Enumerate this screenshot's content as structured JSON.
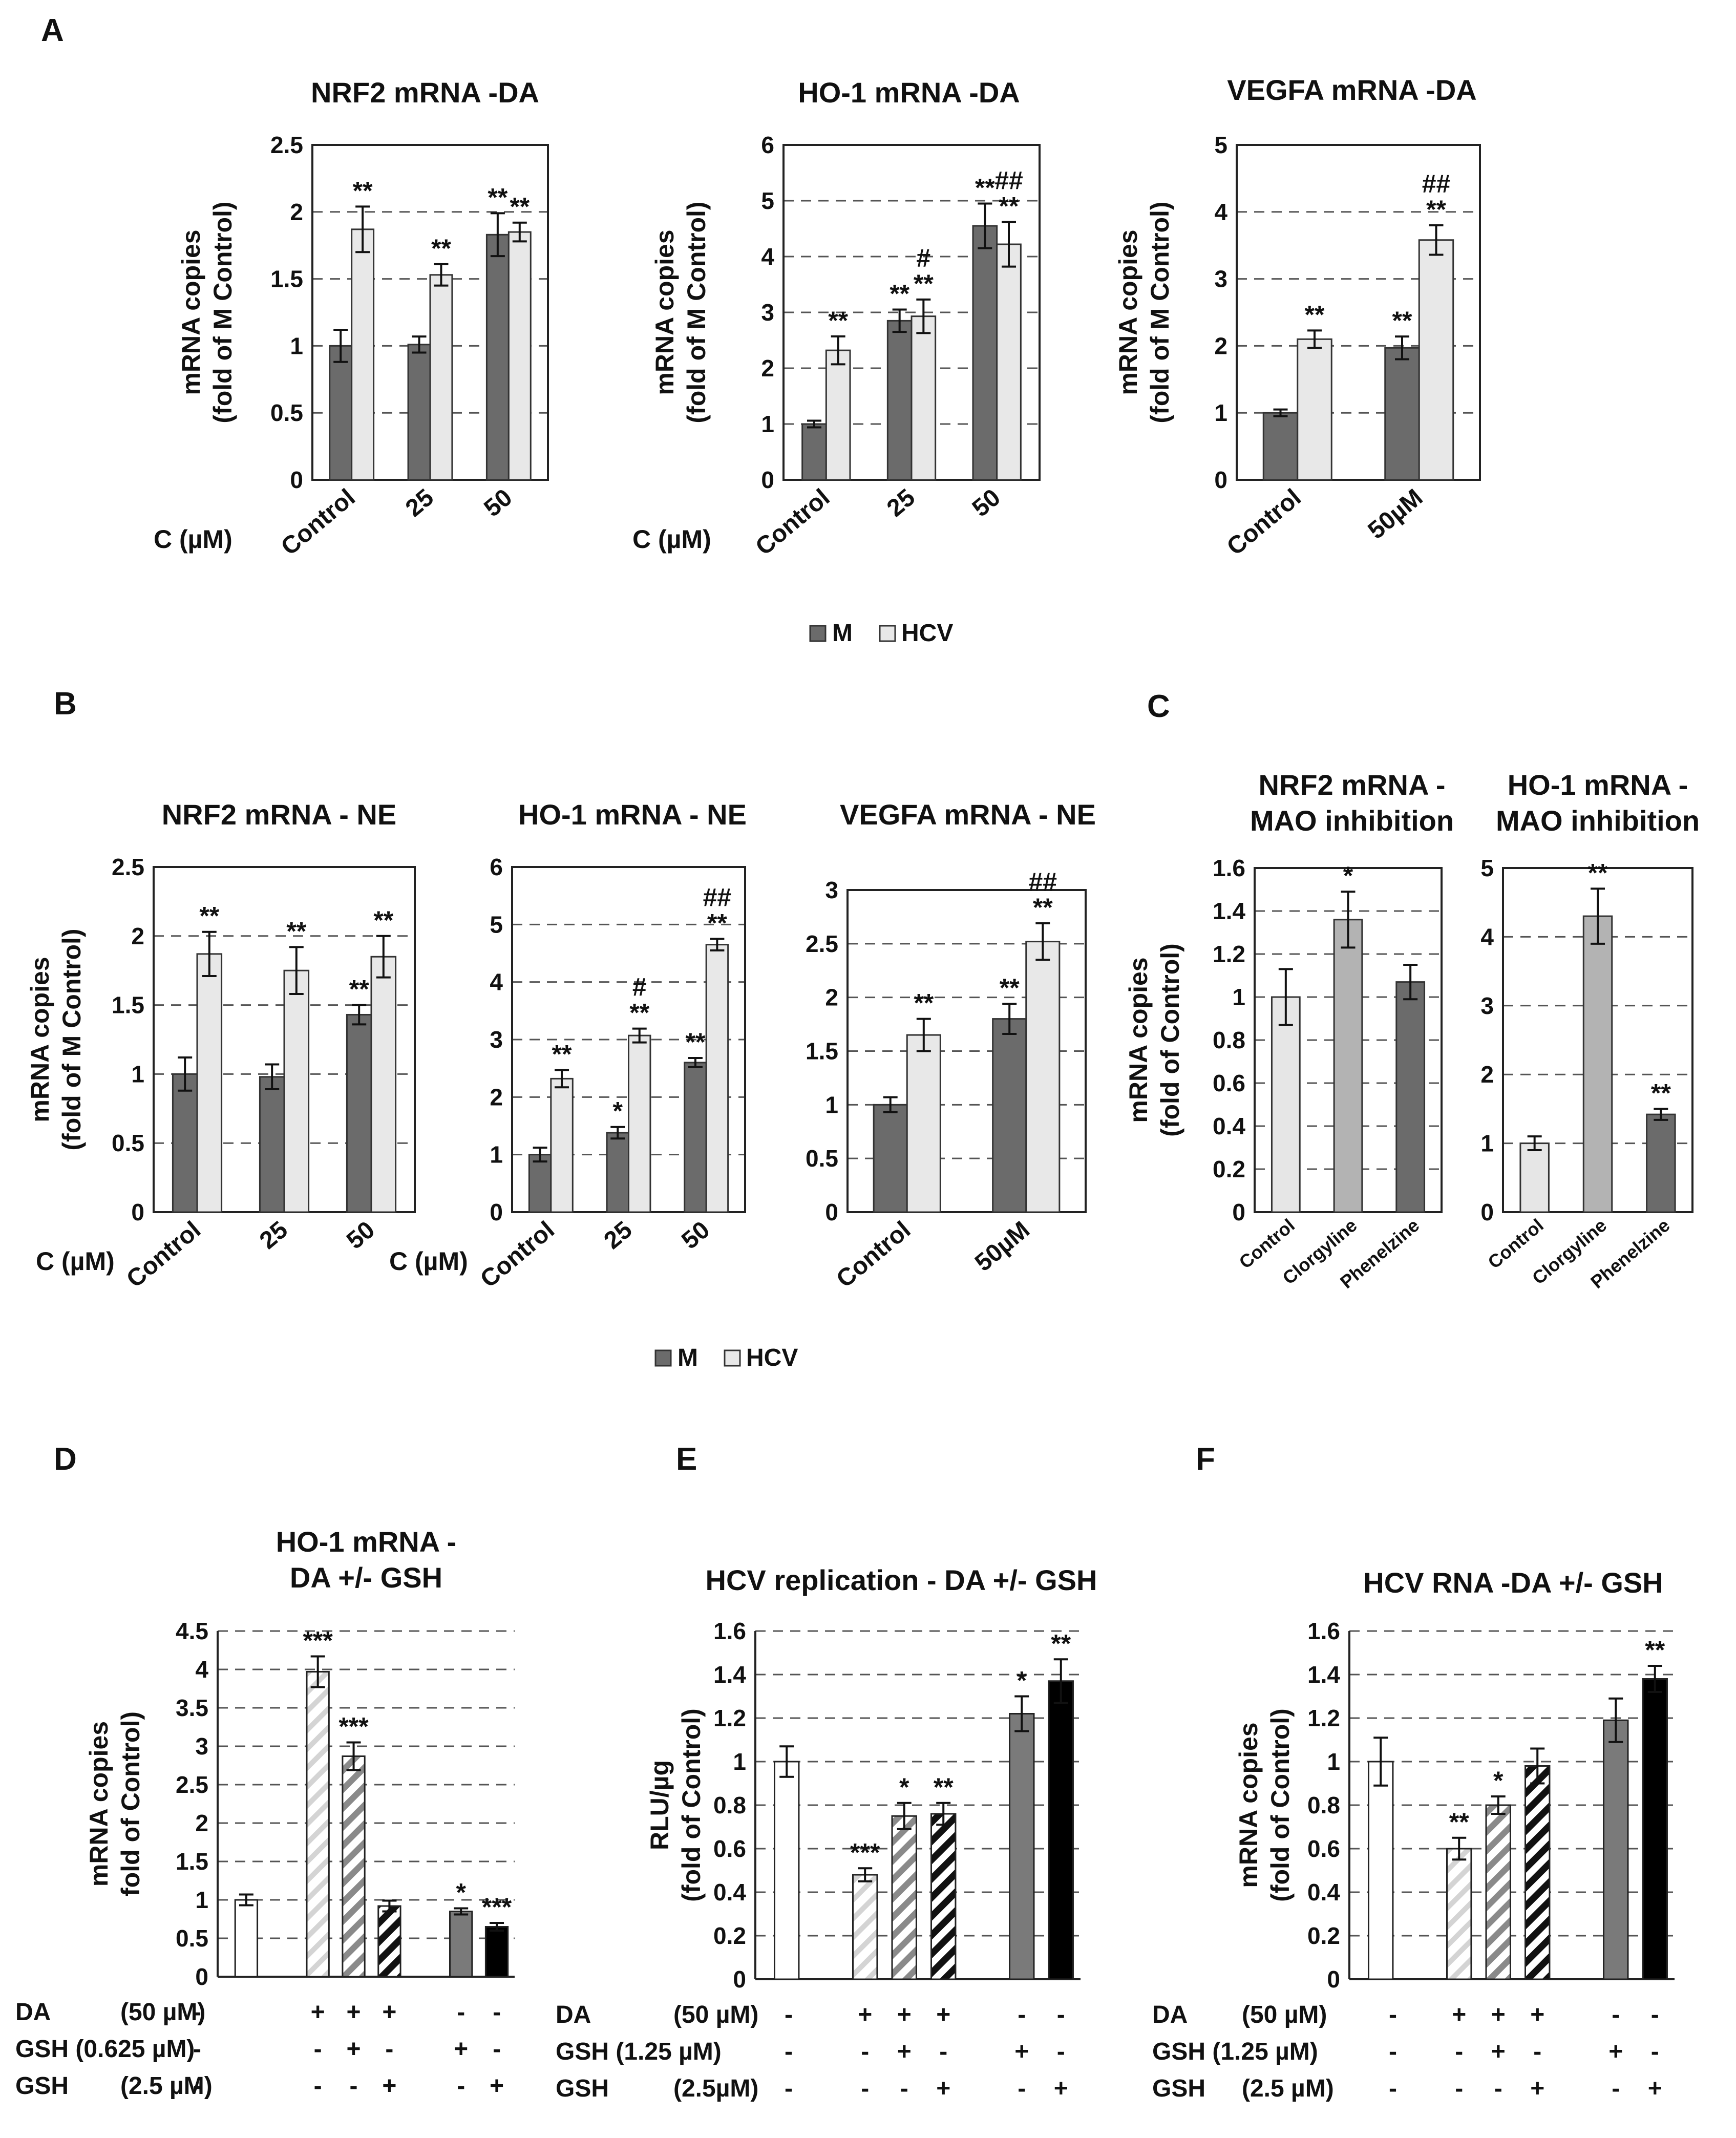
{
  "panel_labels": {
    "A": "A",
    "B": "B",
    "C": "C",
    "D": "D",
    "E": "E",
    "F": "F"
  },
  "legend_AB": {
    "m": "M",
    "hcv": "HCV"
  },
  "colors": {
    "m": "#6b6b6b",
    "hcv": "#e8e8e8",
    "c_light": "#e6e6e6",
    "c_mid": "#b3b3b3",
    "c_dark": "#6b6b6b",
    "dark_gray": "#7a7a7a",
    "black": "#000000"
  },
  "chart_data": [
    {
      "id": "A1",
      "type": "bar",
      "title": "NRF2 mRNA -DA",
      "ylabel": [
        "mRNA copies",
        "(fold of M Control)"
      ],
      "xlabel": "C (µM)",
      "categories": [
        "Control",
        "25",
        "50"
      ],
      "ylim": [
        0,
        2.5
      ],
      "yticks": [
        "0",
        "0.5",
        "1",
        "1.5",
        "2",
        "2.5"
      ],
      "series": [
        {
          "name": "M",
          "values": [
            1.0,
            1.01,
            1.83
          ],
          "errors": [
            0.12,
            0.06,
            0.16
          ],
          "marks": [
            "",
            "",
            "**"
          ]
        },
        {
          "name": "HCV",
          "values": [
            1.87,
            1.53,
            1.85
          ],
          "errors": [
            0.17,
            0.08,
            0.07
          ],
          "marks": [
            "**",
            "**",
            "**"
          ]
        }
      ]
    },
    {
      "id": "A2",
      "type": "bar",
      "title": "HO-1 mRNA -DA",
      "ylabel": [
        "mRNA copies",
        "(fold of M Control)"
      ],
      "xlabel": "C (µM)",
      "categories": [
        "Control",
        "25",
        "50"
      ],
      "ylim": [
        0,
        6
      ],
      "yticks": [
        "0",
        "1",
        "2",
        "3",
        "4",
        "5",
        "6"
      ],
      "series": [
        {
          "name": "M",
          "values": [
            1.0,
            2.85,
            4.55
          ],
          "errors": [
            0.06,
            0.2,
            0.4
          ],
          "marks": [
            "",
            "**",
            "**"
          ]
        },
        {
          "name": "HCV",
          "values": [
            2.32,
            2.93,
            4.22
          ],
          "errors": [
            0.25,
            0.3,
            0.4
          ],
          "marks": [
            "**",
            "#\n**",
            "##\n**"
          ]
        }
      ]
    },
    {
      "id": "A3",
      "type": "bar",
      "title": "VEGFA mRNA -DA",
      "ylabel": [
        "mRNA copies",
        "(fold of M Control)"
      ],
      "xlabel": "",
      "categories": [
        "Control",
        "50µM"
      ],
      "ylim": [
        0,
        5
      ],
      "yticks": [
        "0",
        "1",
        "2",
        "3",
        "4",
        "5"
      ],
      "series": [
        {
          "name": "M",
          "values": [
            1.0,
            1.97
          ],
          "errors": [
            0.05,
            0.17
          ],
          "marks": [
            "",
            "**"
          ]
        },
        {
          "name": "HCV",
          "values": [
            2.1,
            3.58
          ],
          "errors": [
            0.13,
            0.22
          ],
          "marks": [
            "**",
            "##\n**"
          ]
        }
      ]
    },
    {
      "id": "B1",
      "type": "bar",
      "title": "NRF2 mRNA - NE",
      "ylabel": [
        "mRNA copies",
        "(fold of M Control)"
      ],
      "xlabel": "C (µM)",
      "categories": [
        "Control",
        "25",
        "50"
      ],
      "ylim": [
        0,
        2.5
      ],
      "yticks": [
        "0",
        "0.5",
        "1",
        "1.5",
        "2",
        "2.5"
      ],
      "series": [
        {
          "name": "M",
          "values": [
            1.0,
            0.98,
            1.43
          ],
          "errors": [
            0.12,
            0.09,
            0.07
          ],
          "marks": [
            "",
            "",
            "**"
          ]
        },
        {
          "name": "HCV",
          "values": [
            1.87,
            1.75,
            1.85
          ],
          "errors": [
            0.16,
            0.17,
            0.15
          ],
          "marks": [
            "**",
            "**",
            "**"
          ]
        }
      ]
    },
    {
      "id": "B2",
      "type": "bar",
      "title": "HO-1 mRNA - NE",
      "ylabel": [],
      "xlabel": "C (µM)",
      "categories": [
        "Control",
        "25",
        "50"
      ],
      "ylim": [
        0,
        6
      ],
      "yticks": [
        "0",
        "1",
        "2",
        "3",
        "4",
        "5",
        "6"
      ],
      "series": [
        {
          "name": "M",
          "values": [
            1.0,
            1.38,
            2.6
          ],
          "errors": [
            0.12,
            0.1,
            0.08
          ],
          "marks": [
            "",
            "*",
            "**"
          ]
        },
        {
          "name": "HCV",
          "values": [
            2.32,
            3.07,
            4.65
          ],
          "errors": [
            0.15,
            0.12,
            0.1
          ],
          "marks": [
            "**",
            "#\n**",
            "##\n**"
          ]
        }
      ]
    },
    {
      "id": "B3",
      "type": "bar",
      "title": "VEGFA mRNA - NE",
      "ylabel": [],
      "xlabel": "",
      "categories": [
        "Control",
        "50µM"
      ],
      "ylim": [
        0,
        3
      ],
      "yticks": [
        "0",
        "0.5",
        "1",
        "1.5",
        "2",
        "2.5",
        "3"
      ],
      "series": [
        {
          "name": "M",
          "values": [
            1.0,
            1.8
          ],
          "errors": [
            0.07,
            0.14
          ],
          "marks": [
            "",
            "**"
          ]
        },
        {
          "name": "HCV",
          "values": [
            1.65,
            2.52
          ],
          "errors": [
            0.15,
            0.17
          ],
          "marks": [
            "**",
            "##\n**"
          ]
        }
      ]
    },
    {
      "id": "C1",
      "type": "bar",
      "title": [
        "NRF2 mRNA -",
        "MAO inhibition"
      ],
      "ylabel": [
        "mRNA copies",
        "(fold of Control)"
      ],
      "xlabel": "",
      "categories": [
        "Control",
        "Clorgyline",
        "Phenelzine"
      ],
      "ylim": [
        0,
        1.6
      ],
      "yticks": [
        "0",
        "0.2",
        "0.4",
        "0.6",
        "0.8",
        "1",
        "1.2",
        "1.4",
        "1.6"
      ],
      "values": [
        1.0,
        1.36,
        1.07
      ],
      "errors": [
        0.13,
        0.13,
        0.08
      ],
      "marks": [
        "",
        "*",
        ""
      ],
      "fills": [
        "c_light",
        "c_mid",
        "c_dark"
      ]
    },
    {
      "id": "C2",
      "type": "bar",
      "title": [
        "HO-1 mRNA -",
        "MAO inhibition"
      ],
      "ylabel": [],
      "xlabel": "",
      "categories": [
        "Control",
        "Clorgyline",
        "Phenelzine"
      ],
      "ylim": [
        0,
        5
      ],
      "yticks": [
        "0",
        "1",
        "2",
        "3",
        "4",
        "5"
      ],
      "values": [
        1.0,
        4.3,
        1.42
      ],
      "errors": [
        0.1,
        0.4,
        0.08
      ],
      "marks": [
        "",
        "**",
        "**"
      ],
      "fills": [
        "c_light",
        "c_mid",
        "c_dark"
      ]
    },
    {
      "id": "D",
      "type": "bar",
      "title": [
        "HO-1 mRNA -",
        "DA +/- GSH"
      ],
      "ylabel": [
        "mRNA copies",
        "fold of Control)"
      ],
      "ylim": [
        0,
        4.5
      ],
      "yticks": [
        "0",
        "0.5",
        "1",
        "1.5",
        "2",
        "2.5",
        "3",
        "3.5",
        "4",
        "4.5"
      ],
      "values": [
        1.0,
        3.97,
        2.87,
        0.92,
        0.85,
        0.65
      ],
      "errors": [
        0.07,
        0.2,
        0.18,
        0.07,
        0.04,
        0.05
      ],
      "marks": [
        "",
        "***",
        "***",
        "",
        "*",
        "***"
      ],
      "patterns": [
        "white",
        "hatch-light",
        "hatch-mid",
        "hatch-dark",
        "dark_gray",
        "black"
      ],
      "gaps": [
        0,
        1,
        0,
        0,
        1,
        0
      ],
      "conditions": [
        {
          "label": "DA",
          "conc": "(50 µM)",
          "signs": [
            "-",
            "+",
            "+",
            "+",
            "-",
            "-"
          ]
        },
        {
          "label": "GSH (0.625 µM)",
          "conc": "",
          "signs": [
            "-",
            "-",
            "+",
            "-",
            "+",
            "-"
          ]
        },
        {
          "label": "GSH",
          "conc": "(2.5 µM)",
          "signs": [
            "-",
            "-",
            "-",
            "+",
            "-",
            "+"
          ]
        }
      ]
    },
    {
      "id": "E",
      "type": "bar",
      "title": [
        "HCV  replication - DA +/- GSH"
      ],
      "ylabel": [
        "RLU/µg",
        "(fold of Control)"
      ],
      "ylim": [
        0,
        1.6
      ],
      "yticks": [
        "0",
        "0.2",
        "0.4",
        "0.6",
        "0.8",
        "1",
        "1.2",
        "1.4",
        "1.6"
      ],
      "values": [
        1.0,
        0.48,
        0.75,
        0.76,
        1.22,
        1.37
      ],
      "errors": [
        0.07,
        0.03,
        0.06,
        0.05,
        0.08,
        0.1
      ],
      "marks": [
        "",
        "***",
        "*",
        "**",
        "*",
        "**"
      ],
      "patterns": [
        "white",
        "hatch-light",
        "hatch-mid",
        "hatch-dark",
        "dark_gray",
        "black"
      ],
      "gaps": [
        0,
        1,
        0,
        0,
        1,
        0
      ],
      "conditions": [
        {
          "label": "DA",
          "conc": "(50 µM)",
          "signs": [
            "-",
            "+",
            "+",
            "+",
            "-",
            "-"
          ]
        },
        {
          "label": "GSH (1.25 µM)",
          "conc": "",
          "signs": [
            "-",
            "-",
            "+",
            "-",
            "+",
            "-"
          ]
        },
        {
          "label": "GSH",
          "conc": "(2.5µM)",
          "signs": [
            "-",
            "-",
            "-",
            "+",
            "-",
            "+"
          ]
        }
      ]
    },
    {
      "id": "F",
      "type": "bar",
      "title": [
        "HCV RNA -DA +/- GSH"
      ],
      "ylabel": [
        "mRNA copies",
        "(fold of Control)"
      ],
      "ylim": [
        0,
        1.6
      ],
      "yticks": [
        "0",
        "0.2",
        "0.4",
        "0.6",
        "0.8",
        "1",
        "1.2",
        "1.4",
        "1.6"
      ],
      "values": [
        1.0,
        0.6,
        0.8,
        0.98,
        1.19,
        1.38
      ],
      "errors": [
        0.11,
        0.05,
        0.04,
        0.08,
        0.1,
        0.06
      ],
      "marks": [
        "",
        "**",
        "*",
        "",
        "",
        "**"
      ],
      "patterns": [
        "white",
        "hatch-light",
        "hatch-mid",
        "hatch-dark",
        "dark_gray",
        "black"
      ],
      "gaps": [
        0,
        1,
        0,
        0,
        1,
        0
      ],
      "conditions": [
        {
          "label": "DA",
          "conc": "(50 µM)",
          "signs": [
            "-",
            "+",
            "+",
            "+",
            "-",
            "-"
          ]
        },
        {
          "label": "GSH (1.25 µM)",
          "conc": "",
          "signs": [
            "-",
            "-",
            "+",
            "-",
            "+",
            "-"
          ]
        },
        {
          "label": "GSH",
          "conc": "(2.5 µM)",
          "signs": [
            "-",
            "-",
            "-",
            "+",
            "-",
            "+"
          ]
        }
      ]
    }
  ]
}
